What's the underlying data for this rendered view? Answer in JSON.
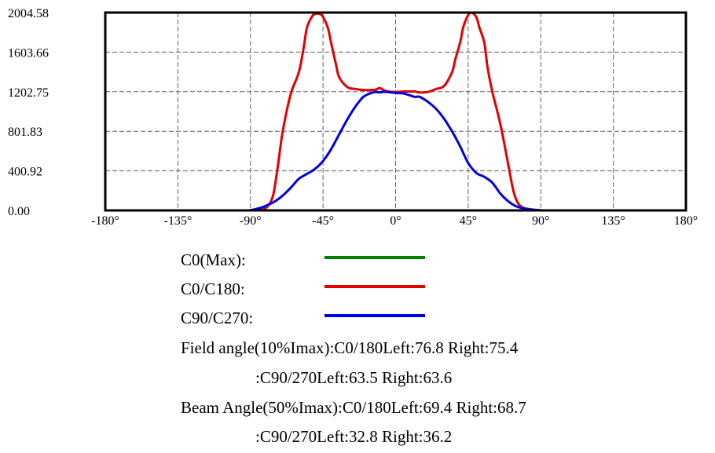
{
  "chart_data": {
    "type": "line",
    "title": "",
    "xlabel": "",
    "ylabel": "",
    "xlim": [
      -180,
      180
    ],
    "ylim": [
      0,
      2004.58
    ],
    "grid": true,
    "x_ticks": [
      -180,
      -135,
      -90,
      -45,
      0,
      45,
      90,
      135,
      180
    ],
    "x_tick_labels": [
      "-180°",
      "-135°",
      "-90°",
      "-45°",
      "0°",
      "45°",
      "90°",
      "135°",
      "180°"
    ],
    "y_ticks": [
      0,
      400.92,
      801.83,
      1202.75,
      1603.66,
      2004.58
    ],
    "y_tick_labels": [
      "0.00",
      "400.92",
      "801.83",
      "1202.75",
      "1603.66",
      "2004.58"
    ],
    "series": [
      {
        "name": "C0(Max)",
        "color": "#008000",
        "x": [],
        "y": []
      },
      {
        "name": "C0/C180",
        "color": "#e00000",
        "x": [
          -180,
          -90,
          -85,
          -80,
          -76,
          -73,
          -70,
          -65,
          -60,
          -57,
          -55,
          -52,
          -50,
          -47,
          -45,
          -42,
          -40,
          -37,
          -35,
          -30,
          -25,
          -20,
          -15,
          -12,
          -10,
          -8,
          -5,
          0,
          5,
          10,
          12,
          15,
          20,
          25,
          30,
          35,
          37,
          40,
          42,
          45,
          47,
          50,
          52,
          55,
          57,
          60,
          65,
          70,
          73,
          76,
          80,
          85,
          90,
          180
        ],
        "y": [
          0,
          0,
          2,
          30,
          150,
          450,
          800,
          1180,
          1400,
          1650,
          1850,
          1960,
          1990,
          1990,
          1960,
          1850,
          1700,
          1480,
          1350,
          1250,
          1230,
          1220,
          1220,
          1225,
          1240,
          1225,
          1205,
          1200,
          1205,
          1205,
          1205,
          1195,
          1200,
          1230,
          1260,
          1400,
          1530,
          1700,
          1860,
          1980,
          2004,
          1960,
          1850,
          1700,
          1450,
          1200,
          870,
          450,
          200,
          70,
          20,
          3,
          0,
          0
        ]
      },
      {
        "name": "C90/C270",
        "color": "#0000e0",
        "x": [
          -180,
          -95,
          -90,
          -85,
          -80,
          -75,
          -70,
          -65,
          -60,
          -55,
          -50,
          -45,
          -40,
          -35,
          -30,
          -25,
          -20,
          -15,
          -12,
          -10,
          -8,
          -5,
          0,
          5,
          8,
          10,
          12,
          15,
          20,
          25,
          30,
          35,
          40,
          45,
          50,
          55,
          60,
          65,
          70,
          75,
          80,
          85,
          90,
          95,
          180
        ],
        "y": [
          0,
          0,
          3,
          20,
          50,
          90,
          150,
          230,
          320,
          370,
          420,
          500,
          620,
          770,
          920,
          1050,
          1150,
          1190,
          1200,
          1195,
          1200,
          1200,
          1190,
          1185,
          1170,
          1160,
          1150,
          1150,
          1100,
          1030,
          930,
          800,
          650,
          480,
          380,
          340,
          280,
          170,
          90,
          40,
          20,
          8,
          2,
          0,
          0
        ]
      }
    ]
  },
  "legend": [
    {
      "label": "C0(Max):",
      "color": "#008000"
    },
    {
      "label": "C0/C180:",
      "color": "#e00000"
    },
    {
      "label": "C90/C270:",
      "color": "#0000e0"
    }
  ],
  "info": {
    "field_line1": "Field angle(10%Imax):C0/180Left:76.8 Right:75.4",
    "field_line2": ":C90/270Left:63.5 Right:63.6",
    "beam_line1": "Beam Angle(50%Imax):C0/180Left:69.4 Right:68.7",
    "beam_line2": ":C90/270Left:32.8 Right:36.2"
  }
}
